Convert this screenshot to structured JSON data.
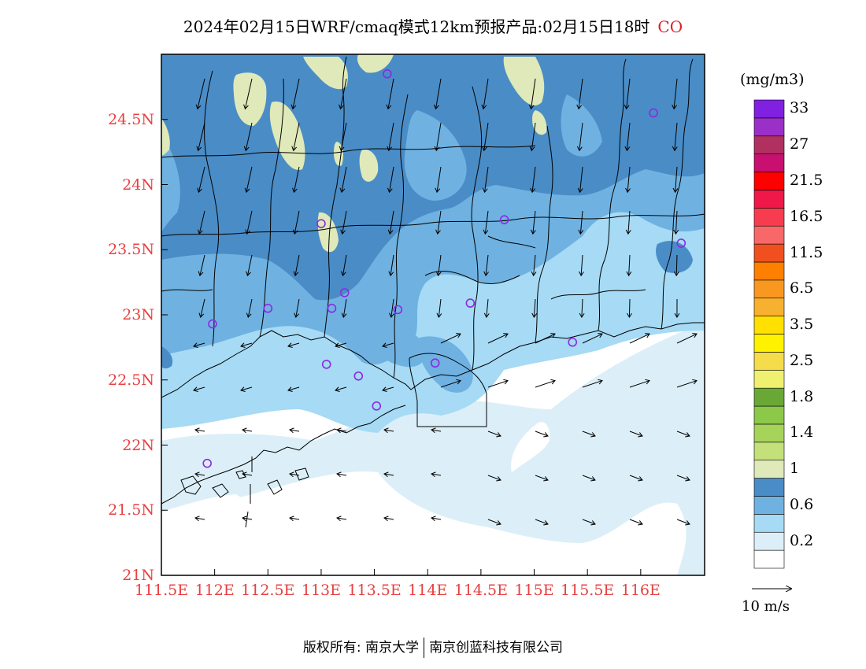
{
  "title": {
    "main": "2024年02月15日WRF/cmaq模式12km预报产品:02月15日18时",
    "species": "CO"
  },
  "axes": {
    "lat_labels": [
      "24.5N",
      "24N",
      "23.5N",
      "23N",
      "22.5N",
      "22N",
      "21.5N",
      "21N"
    ],
    "lat_values": [
      24.5,
      24.0,
      23.5,
      23.0,
      22.5,
      22.0,
      21.5,
      21.0
    ],
    "lon_labels": [
      "111.5E",
      "112E",
      "112.5E",
      "113E",
      "113.5E",
      "114E",
      "114.5E",
      "115E",
      "115.5E",
      "116E"
    ],
    "lon_values": [
      111.5,
      112.0,
      112.5,
      113.0,
      113.5,
      114.0,
      114.5,
      115.0,
      115.5,
      116.0
    ],
    "lon_range": [
      111.5,
      116.6
    ],
    "lat_range": [
      21.0,
      25.0
    ]
  },
  "colorbar": {
    "unit": "(mg/m3)",
    "colors": [
      "#ffffff",
      "#dceff8",
      "#a6daf5",
      "#6fb2e1",
      "#4a8cc6",
      "#dfe9b9",
      "#c4e07a",
      "#a6d45a",
      "#8cc84a",
      "#6aa836",
      "#f0f070",
      "#f5dc4a",
      "#fff200",
      "#ffe000",
      "#f8b030",
      "#f89820",
      "#ff8000",
      "#f05020",
      "#f86868",
      "#f83c50",
      "#f01848",
      "#ff0000",
      "#c81070",
      "#b03060",
      "#9a30c8",
      "#8020e0"
    ],
    "labels": [
      "0.2",
      "0.6",
      "1",
      "1.4",
      "1.8",
      "2.5",
      "3.5",
      "6.5",
      "11.5",
      "16.5",
      "21.5",
      "27",
      "33"
    ]
  },
  "wind_reference": {
    "label": "10 m/s",
    "speed": 10
  },
  "stations": [
    {
      "lon": 113.62,
      "lat": 24.85
    },
    {
      "lon": 116.12,
      "lat": 24.55
    },
    {
      "lon": 113.0,
      "lat": 23.7
    },
    {
      "lon": 114.72,
      "lat": 23.73
    },
    {
      "lon": 116.38,
      "lat": 23.55
    },
    {
      "lon": 113.22,
      "lat": 23.17
    },
    {
      "lon": 112.5,
      "lat": 23.05
    },
    {
      "lon": 113.1,
      "lat": 23.05
    },
    {
      "lon": 113.72,
      "lat": 23.04
    },
    {
      "lon": 114.4,
      "lat": 23.09
    },
    {
      "lon": 111.98,
      "lat": 22.93
    },
    {
      "lon": 115.36,
      "lat": 22.79
    },
    {
      "lon": 113.05,
      "lat": 22.62
    },
    {
      "lon": 113.35,
      "lat": 22.53
    },
    {
      "lon": 114.07,
      "lat": 22.63
    },
    {
      "lon": 113.52,
      "lat": 22.3
    },
    {
      "lon": 111.93,
      "lat": 21.86
    }
  ],
  "copyright": {
    "left": "版权所有: 南京大学",
    "right": "南京创蓝科技有限公司"
  }
}
